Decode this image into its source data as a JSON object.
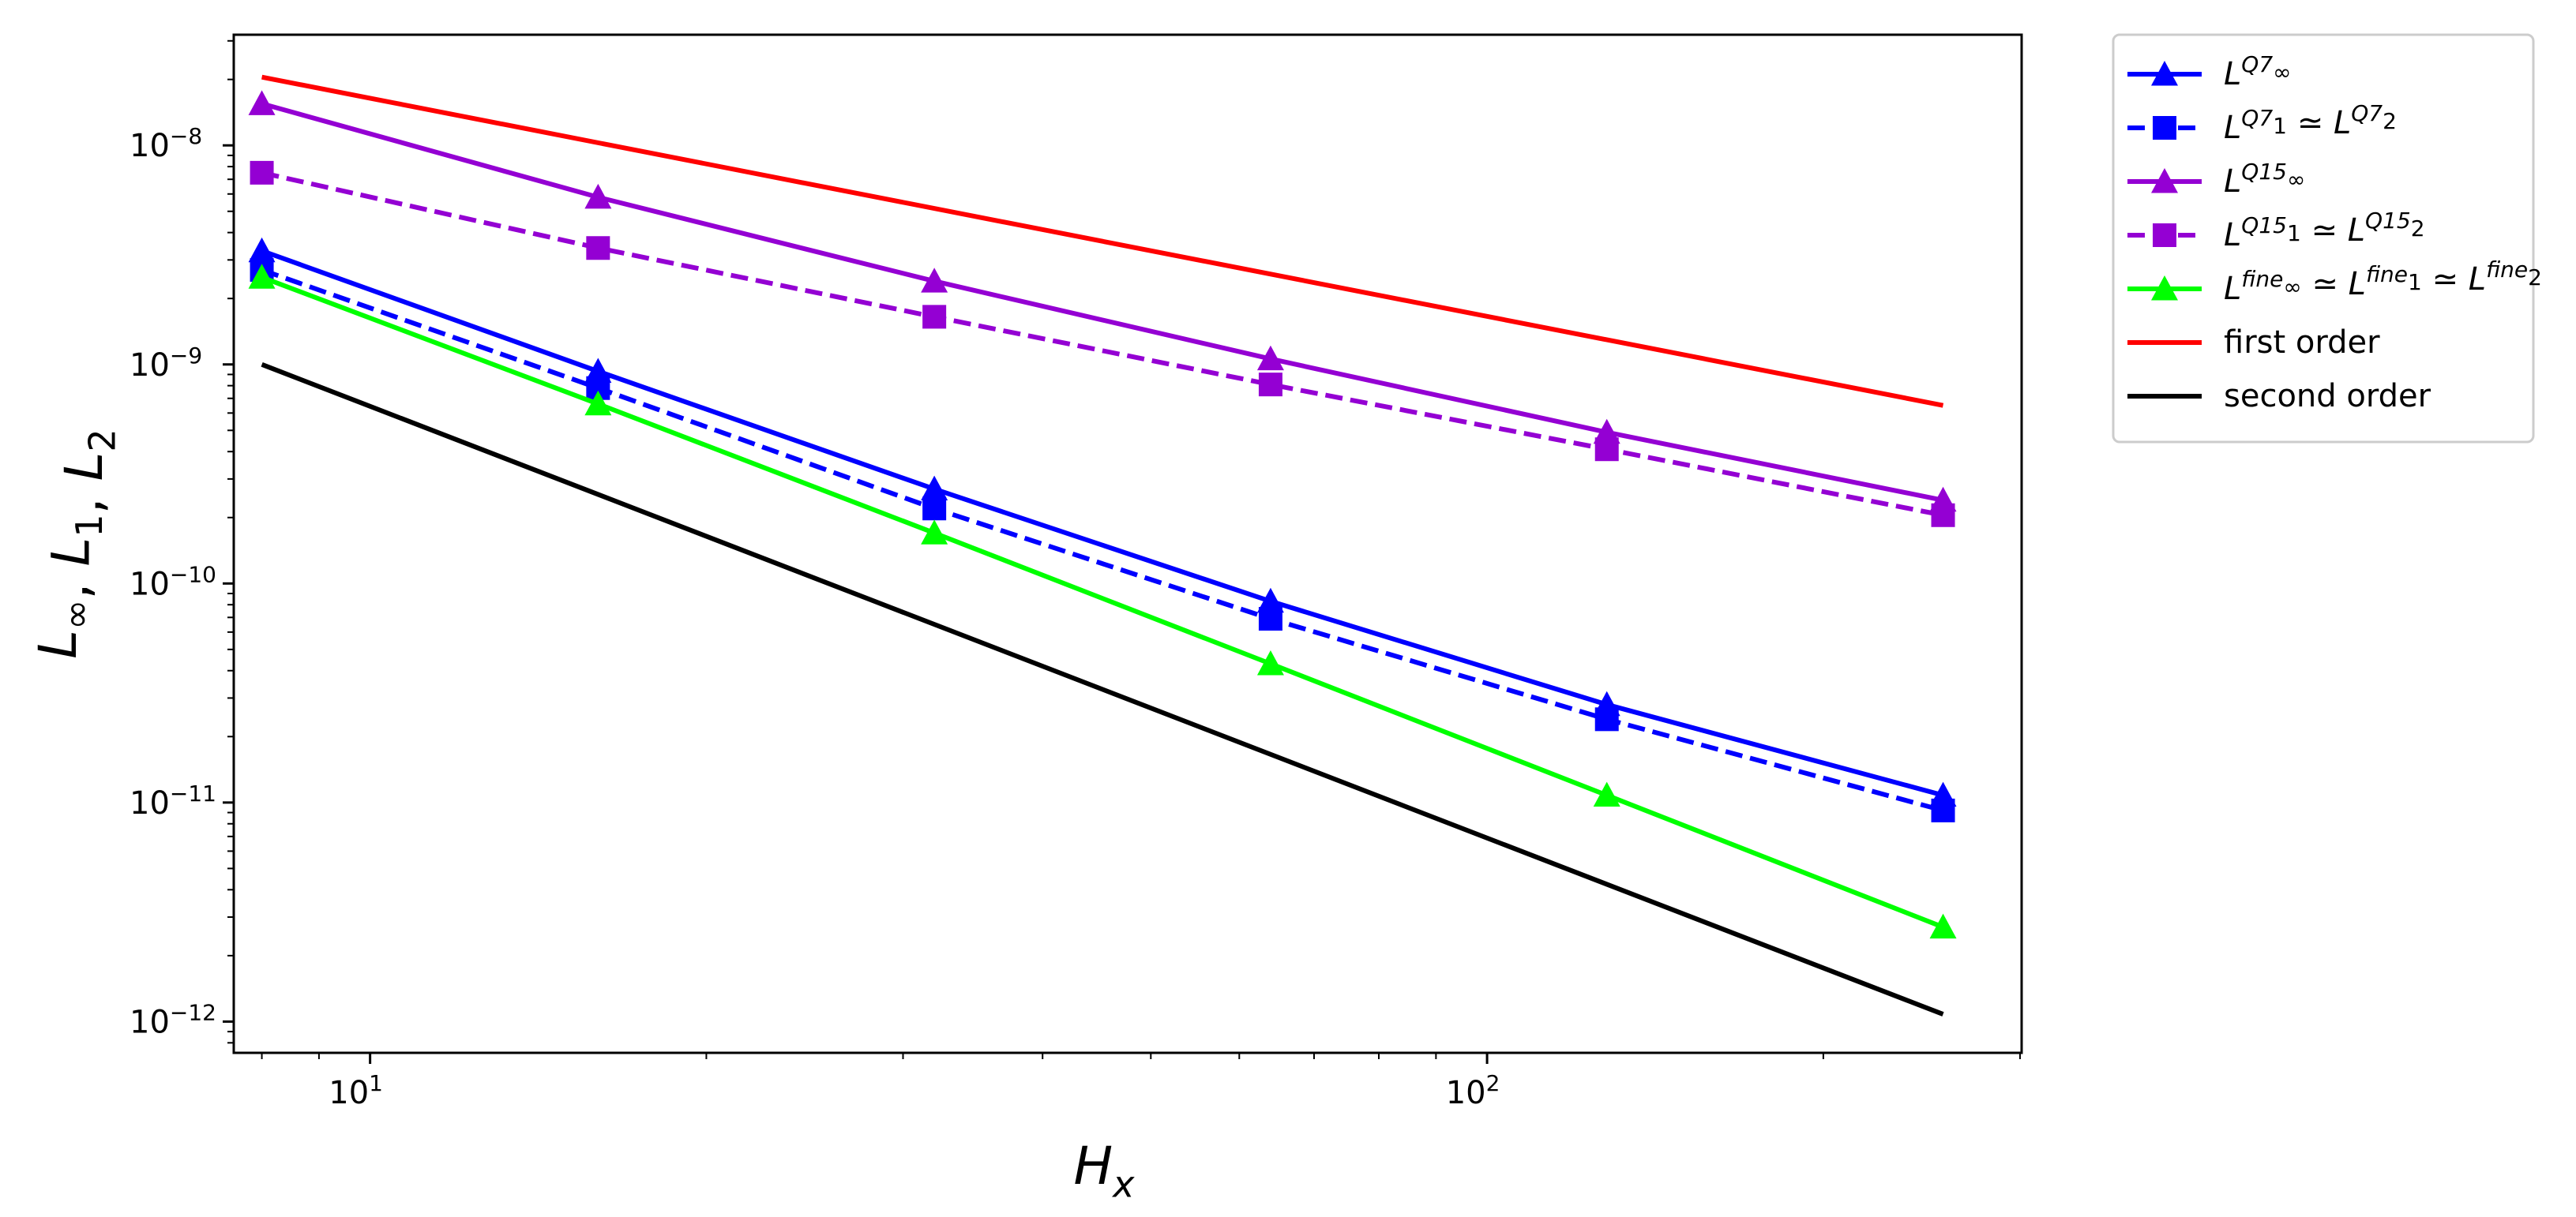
{
  "chart_data": {
    "type": "line",
    "xscale": "log",
    "yscale": "log",
    "xlabel": "H_x",
    "ylabel": "L_∞, L_1, L_2",
    "xlim": [
      7.55,
      301
    ],
    "ylim": [
      7.2e-13,
      3.2e-08
    ],
    "x_ticks": [
      {
        "value": 10,
        "label": "10^1"
      },
      {
        "value": 100,
        "label": "10^2"
      }
    ],
    "y_ticks": [
      {
        "value": 1e-12,
        "label": "10^−12"
      },
      {
        "value": 1e-11,
        "label": "10^−11"
      },
      {
        "value": 1e-10,
        "label": "10^−10"
      },
      {
        "value": 1e-09,
        "label": "10^−9"
      },
      {
        "value": 1e-08,
        "label": "10^−8"
      }
    ],
    "grid": false,
    "legend_position": "outside-right-top",
    "series": [
      {
        "name": "L_∞^{Q7}",
        "color": "#0000ff",
        "linestyle": "solid",
        "marker": "triangle",
        "x": [
          8,
          16,
          32,
          64,
          128,
          256
        ],
        "y": [
          3.3e-09,
          9.3e-10,
          2.7e-10,
          8.3e-11,
          2.8e-11,
          1.08e-11
        ]
      },
      {
        "name": "L_1^{Q7} ≃ L_2^{Q7}",
        "color": "#0000ff",
        "linestyle": "dashed",
        "marker": "square",
        "x": [
          8,
          16,
          32,
          64,
          128,
          256
        ],
        "y": [
          2.7e-09,
          7.8e-10,
          2.2e-10,
          6.9e-11,
          2.4e-11,
          9.2e-12
        ]
      },
      {
        "name": "L_∞^{Q15}",
        "color": "#9400d3",
        "linestyle": "solid",
        "marker": "triangle",
        "x": [
          8,
          16,
          32,
          64,
          128,
          256
        ],
        "y": [
          1.55e-08,
          5.8e-09,
          2.4e-09,
          1.06e-09,
          4.9e-10,
          2.4e-10
        ]
      },
      {
        "name": "L_1^{Q15} ≃ L_2^{Q15}",
        "color": "#9400d3",
        "linestyle": "dashed",
        "marker": "square",
        "x": [
          8,
          16,
          32,
          64,
          128,
          256
        ],
        "y": [
          7.5e-09,
          3.4e-09,
          1.65e-09,
          8.1e-10,
          4.1e-10,
          2.05e-10
        ]
      },
      {
        "name": "L_∞^{fine} ≃ L_1^{fine} ≃ L_2^{fine}",
        "color": "#00ff00",
        "linestyle": "solid",
        "marker": "triangle",
        "x": [
          8,
          16,
          32,
          64,
          128,
          256
        ],
        "y": [
          2.5e-09,
          6.6e-10,
          1.7e-10,
          4.3e-11,
          1.08e-11,
          2.7e-12
        ]
      },
      {
        "name": "first order",
        "color": "#ff0000",
        "linestyle": "solid",
        "marker": "none",
        "x": [
          8,
          256
        ],
        "y": [
          2.05e-08,
          6.5e-10
        ]
      },
      {
        "name": "second order",
        "color": "#000000",
        "linestyle": "solid",
        "marker": "none",
        "x": [
          8,
          256
        ],
        "y": [
          1e-09,
          1.08e-12
        ]
      }
    ]
  }
}
